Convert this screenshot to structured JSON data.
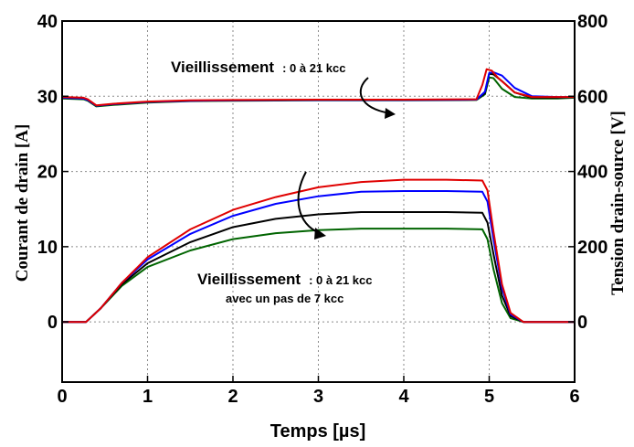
{
  "chart_data": {
    "type": "line",
    "xlabel": "Temps [µs]",
    "ylabel_left": "Courant de drain [A]",
    "ylabel_right": "Tension drain-source [V]",
    "xlim": [
      0,
      6
    ],
    "ylim_left": [
      -8,
      40
    ],
    "ylim_right": [
      -160,
      800
    ],
    "x_ticks": [
      "0",
      "1",
      "2",
      "3",
      "4",
      "5",
      "6"
    ],
    "y_left_ticks": [
      "0",
      "10",
      "20",
      "30",
      "40"
    ],
    "y_right_ticks": [
      "0",
      "200",
      "400",
      "600",
      "800"
    ],
    "grid": true,
    "annotations": {
      "top": {
        "main": "Vieillissement",
        "detail": ": 0 à 21 kcc"
      },
      "bottom": {
        "main": "Vieillissement",
        "detail": ": 0 à 21 kcc",
        "line2": "avec un pas de 7 kcc"
      }
    },
    "series_colors": [
      "#e00000",
      "#0000ff",
      "#000000",
      "#006400"
    ],
    "current_series": [
      {
        "color": "#e00000",
        "x": [
          0,
          0.28,
          0.45,
          0.7,
          1.0,
          1.5,
          2.0,
          2.5,
          3.0,
          3.5,
          4.0,
          4.5,
          4.92,
          4.98,
          5.05,
          5.15,
          5.25,
          5.4,
          6.0
        ],
        "y": [
          0,
          0,
          1.8,
          5.2,
          8.6,
          12.3,
          14.9,
          16.6,
          17.9,
          18.6,
          18.9,
          18.9,
          18.8,
          17.5,
          12,
          5,
          1.2,
          0,
          0
        ]
      },
      {
        "color": "#0000ff",
        "x": [
          0,
          0.28,
          0.45,
          0.7,
          1.0,
          1.5,
          2.0,
          2.5,
          3.0,
          3.5,
          4.0,
          4.5,
          4.92,
          4.98,
          5.05,
          5.15,
          5.25,
          5.4,
          6.0
        ],
        "y": [
          0,
          0,
          1.8,
          5.2,
          8.3,
          11.7,
          14.1,
          15.7,
          16.7,
          17.3,
          17.4,
          17.4,
          17.3,
          16,
          11,
          4.5,
          1,
          0,
          0
        ]
      },
      {
        "color": "#000000",
        "x": [
          0,
          0.28,
          0.45,
          0.7,
          1.0,
          1.5,
          2.0,
          2.5,
          3.0,
          3.5,
          4.0,
          4.5,
          4.92,
          4.98,
          5.05,
          5.15,
          5.25,
          5.4,
          6.0
        ],
        "y": [
          0,
          0,
          1.8,
          5.0,
          7.8,
          10.6,
          12.6,
          13.7,
          14.3,
          14.6,
          14.6,
          14.6,
          14.5,
          13.2,
          9,
          3.5,
          0.8,
          0,
          0
        ]
      },
      {
        "color": "#006400",
        "x": [
          0,
          0.28,
          0.45,
          0.7,
          1.0,
          1.5,
          2.0,
          2.5,
          3.0,
          3.5,
          4.0,
          4.5,
          4.92,
          4.98,
          5.05,
          5.15,
          5.25,
          5.4,
          6.0
        ],
        "y": [
          0,
          0,
          1.8,
          4.8,
          7.3,
          9.5,
          11.0,
          11.8,
          12.2,
          12.4,
          12.4,
          12.4,
          12.3,
          11,
          7,
          2.5,
          0.5,
          0,
          0
        ]
      }
    ],
    "voltage_series": [
      {
        "color": "#e00000",
        "x": [
          0,
          0.25,
          0.3,
          0.4,
          0.6,
          1.0,
          1.5,
          2.0,
          3.0,
          4.0,
          4.85,
          4.92,
          4.97,
          5.03,
          5.1,
          5.3,
          5.5,
          5.8,
          6.0
        ],
        "y": [
          598,
          596,
          592,
          576,
          580,
          586,
          589,
          590,
          591,
          591,
          592,
          630,
          672,
          668,
          650,
          610,
          598,
          598,
          598
        ]
      },
      {
        "color": "#0000ff",
        "x": [
          0,
          0.25,
          0.3,
          0.4,
          0.6,
          1.0,
          1.5,
          2.0,
          3.0,
          4.0,
          4.85,
          4.95,
          5.0,
          5.05,
          5.15,
          5.3,
          5.5,
          5.8,
          6.0
        ],
        "y": [
          596,
          594,
          590,
          575,
          579,
          585,
          588,
          589,
          590,
          590,
          591,
          612,
          662,
          664,
          655,
          622,
          600,
          598,
          598
        ]
      },
      {
        "color": "#000000",
        "x": [
          0,
          0.25,
          0.3,
          0.4,
          0.6,
          1.0,
          1.5,
          2.0,
          3.0,
          4.0,
          4.85,
          4.95,
          5.0,
          5.05,
          5.15,
          5.3,
          5.5,
          5.8,
          6.0
        ],
        "y": [
          596,
          594,
          590,
          575,
          579,
          585,
          588,
          589,
          590,
          590,
          591,
          608,
          660,
          658,
          640,
          610,
          596,
          596,
          598
        ]
      },
      {
        "color": "#006400",
        "x": [
          0,
          0.25,
          0.3,
          0.4,
          0.6,
          1.0,
          1.5,
          2.0,
          3.0,
          4.0,
          4.85,
          4.95,
          5.0,
          5.05,
          5.15,
          5.3,
          5.5,
          5.8,
          6.0
        ],
        "y": [
          594,
          592,
          588,
          573,
          577,
          583,
          587,
          588,
          589,
          589,
          590,
          605,
          650,
          648,
          620,
          598,
          594,
          594,
          596
        ]
      }
    ]
  }
}
